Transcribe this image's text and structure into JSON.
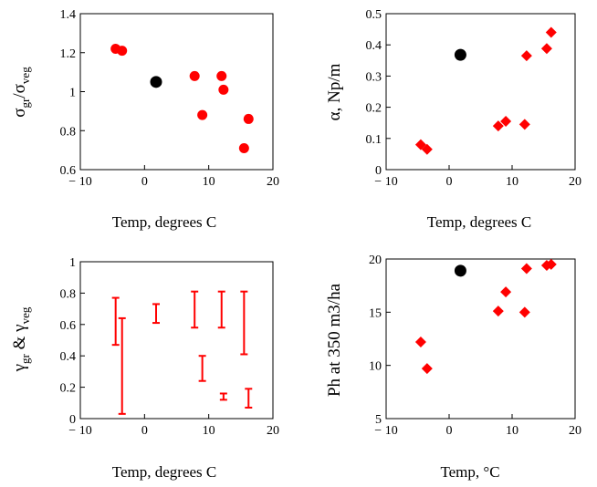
{
  "colors": {
    "red": "#ff0000",
    "black": "#000000",
    "axis": "#000000"
  },
  "chart_data": [
    {
      "id": "sigma",
      "type": "scatter",
      "ylabel": {
        "main": "σ",
        "sub1": "gr",
        "slash": "/σ",
        "sub2": "veg"
      },
      "xlabel": "Temp, degrees C",
      "xlim": [
        -10,
        20
      ],
      "ylim": [
        0.6,
        1.4
      ],
      "xticks": [
        -10,
        0,
        10,
        20
      ],
      "xtick_labels": [
        "− 10",
        "0",
        "10",
        "20"
      ],
      "yticks": [
        0.6,
        0.8,
        1.0,
        1.2,
        1.4
      ],
      "ytick_labels": [
        "0.6",
        "0.8",
        "1",
        "1.2",
        "1.4"
      ],
      "grid": false,
      "series": [
        {
          "marker": "circle",
          "color": "red",
          "x": [
            -4.5,
            -3.5,
            7.8,
            9.0,
            12.0,
            12.3,
            15.5,
            16.2
          ],
          "y": [
            1.22,
            1.21,
            1.08,
            0.88,
            1.08,
            1.01,
            0.71,
            0.86
          ]
        },
        {
          "marker": "circle",
          "color": "black",
          "size": "large",
          "x": [
            1.8
          ],
          "y": [
            1.05
          ]
        }
      ]
    },
    {
      "id": "alpha",
      "type": "scatter",
      "ylabel": {
        "main": "α, Np/m"
      },
      "xlabel": "Temp, degrees C",
      "xlim": [
        -10,
        20
      ],
      "ylim": [
        0,
        0.5
      ],
      "xticks": [
        -10,
        0,
        10,
        20
      ],
      "xtick_labels": [
        "− 10",
        "0",
        "10",
        "20"
      ],
      "yticks": [
        0,
        0.1,
        0.2,
        0.3,
        0.4,
        0.5
      ],
      "ytick_labels": [
        "0",
        "0.1",
        "0.2",
        "0.3",
        "0.4",
        "0.5"
      ],
      "grid": false,
      "series": [
        {
          "marker": "diamond",
          "color": "red",
          "x": [
            -4.5,
            -3.5,
            7.8,
            9.0,
            12.0,
            12.3,
            15.5,
            16.2
          ],
          "y": [
            0.08,
            0.065,
            0.14,
            0.155,
            0.145,
            0.365,
            0.388,
            0.44
          ]
        },
        {
          "marker": "circle",
          "color": "black",
          "size": "large",
          "x": [
            1.8
          ],
          "y": [
            0.368
          ]
        }
      ]
    },
    {
      "id": "gamma",
      "type": "errorbar",
      "ylabel": {
        "main": "γ",
        "sub1": "gr",
        "amp": " & γ",
        "sub2": "veg"
      },
      "xlabel": "Temp, degrees C",
      "xlim": [
        -10,
        20
      ],
      "ylim": [
        0,
        1
      ],
      "xticks": [
        -10,
        0,
        10,
        20
      ],
      "xtick_labels": [
        "− 10",
        "0",
        "10",
        "20"
      ],
      "yticks": [
        0,
        0.2,
        0.4,
        0.6,
        0.8,
        1
      ],
      "ytick_labels": [
        "0",
        "0.2",
        "0.4",
        "0.6",
        "0.8",
        "1"
      ],
      "grid": false,
      "series": [
        {
          "color": "red",
          "x": [
            -4.5,
            -3.5,
            1.8,
            7.8,
            9.0,
            12.0,
            12.3,
            15.5,
            16.2
          ],
          "low": [
            0.47,
            0.03,
            0.61,
            0.58,
            0.24,
            0.58,
            0.12,
            0.41,
            0.07
          ],
          "high": [
            0.77,
            0.64,
            0.73,
            0.81,
            0.4,
            0.81,
            0.16,
            0.81,
            0.19
          ]
        }
      ]
    },
    {
      "id": "ph",
      "type": "scatter",
      "ylabel": {
        "main": "Ph at 350 m3/ha"
      },
      "xlabel": "Temp, °C",
      "xlim": [
        -10,
        20
      ],
      "ylim": [
        5,
        20
      ],
      "xticks": [
        -10,
        0,
        10,
        20
      ],
      "xtick_labels": [
        "− 10",
        "0",
        "10",
        "20"
      ],
      "yticks": [
        5,
        10,
        15,
        20
      ],
      "ytick_labels": [
        "5",
        "10",
        "15",
        "20"
      ],
      "grid": false,
      "series": [
        {
          "marker": "diamond",
          "color": "red",
          "x": [
            -4.5,
            -3.5,
            7.8,
            9.0,
            12.0,
            12.3,
            15.5,
            16.2
          ],
          "y": [
            12.2,
            9.7,
            15.1,
            16.9,
            15.0,
            19.1,
            19.4,
            19.5
          ]
        },
        {
          "marker": "circle",
          "color": "black",
          "size": "large",
          "x": [
            1.8
          ],
          "y": [
            18.9
          ]
        }
      ]
    }
  ]
}
